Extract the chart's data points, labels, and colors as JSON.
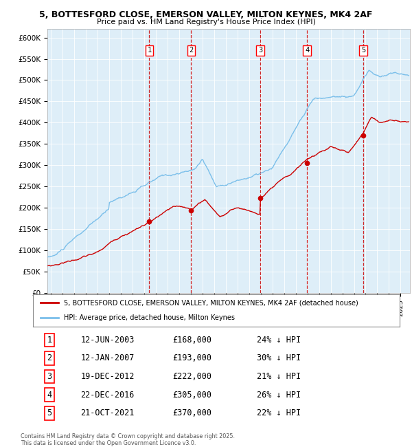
{
  "title_line1": "5, BOTTESFORD CLOSE, EMERSON VALLEY, MILTON KEYNES, MK4 2AF",
  "title_line2": "Price paid vs. HM Land Registry's House Price Index (HPI)",
  "ylim": [
    0,
    620000
  ],
  "yticks": [
    0,
    50000,
    100000,
    150000,
    200000,
    250000,
    300000,
    350000,
    400000,
    450000,
    500000,
    550000,
    600000
  ],
  "ytick_labels": [
    "£0",
    "£50K",
    "£100K",
    "£150K",
    "£200K",
    "£250K",
    "£300K",
    "£350K",
    "£400K",
    "£450K",
    "£500K",
    "£550K",
    "£600K"
  ],
  "xlim_start": 1994.7,
  "xlim_end": 2025.8,
  "sale_dates": [
    2003.44,
    2007.03,
    2012.96,
    2016.97,
    2021.8
  ],
  "sale_prices": [
    168000,
    193000,
    222000,
    305000,
    370000
  ],
  "sale_labels": [
    "1",
    "2",
    "3",
    "4",
    "5"
  ],
  "hpi_color": "#7bbfea",
  "price_color": "#cc0000",
  "chart_bg": "#deeef8",
  "legend_label_red": "5, BOTTESFORD CLOSE, EMERSON VALLEY, MILTON KEYNES, MK4 2AF (detached house)",
  "legend_label_blue": "HPI: Average price, detached house, Milton Keynes",
  "footer_text": "Contains HM Land Registry data © Crown copyright and database right 2025.\nThis data is licensed under the Open Government Licence v3.0.",
  "table_rows": [
    [
      "1",
      "12-JUN-2003",
      "£168,000",
      "24% ↓ HPI"
    ],
    [
      "2",
      "12-JAN-2007",
      "£193,000",
      "30% ↓ HPI"
    ],
    [
      "3",
      "19-DEC-2012",
      "£222,000",
      "21% ↓ HPI"
    ],
    [
      "4",
      "22-DEC-2016",
      "£305,000",
      "26% ↓ HPI"
    ],
    [
      "5",
      "21-OCT-2021",
      "£370,000",
      "22% ↓ HPI"
    ]
  ]
}
